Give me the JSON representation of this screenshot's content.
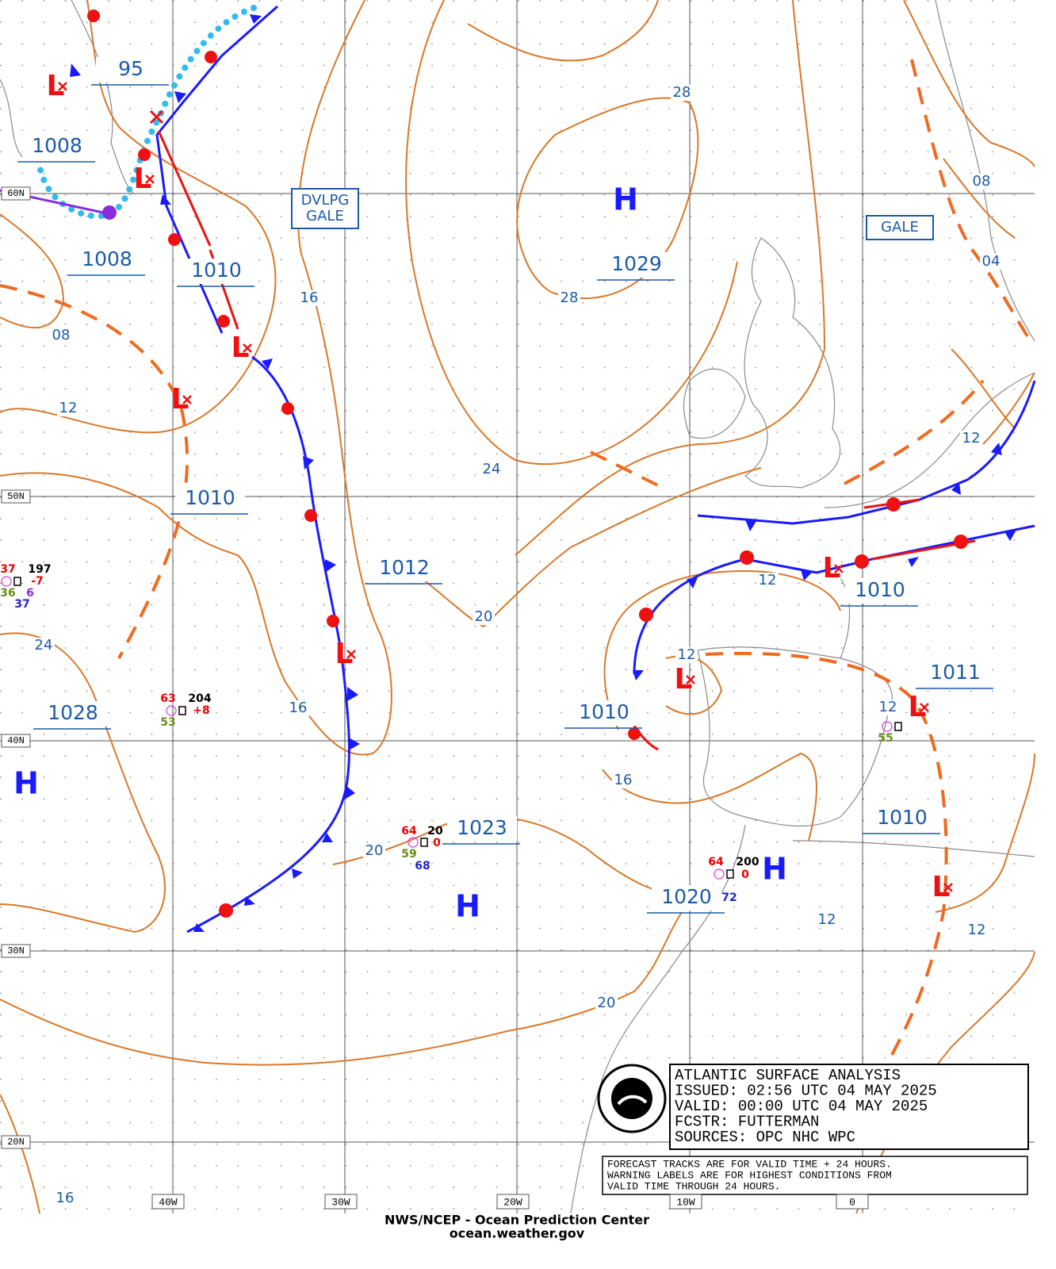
{
  "lat_labels": [
    "60N",
    "50N",
    "40N",
    "30N",
    "20N"
  ],
  "lon_labels": [
    "40W",
    "30W",
    "20W",
    "10W",
    "0"
  ],
  "pressure_labels": [
    "95",
    "1008",
    "1008",
    "1010",
    "1010",
    "1012",
    "1029",
    "1028",
    "1023",
    "1020",
    "1010",
    "1010",
    "1011",
    "1010"
  ],
  "isobar_labels": [
    "28",
    "28",
    "16",
    "08",
    "12",
    "24",
    "20",
    "24",
    "16",
    "20",
    "12",
    "12",
    "16",
    "12",
    "12",
    "12",
    "20",
    "08",
    "04",
    "12",
    "16"
  ],
  "highs": [
    "H",
    "H",
    "H",
    "H"
  ],
  "lows": [
    "L",
    "L",
    "L",
    "L",
    "L",
    "L",
    "L",
    "L",
    "L"
  ],
  "warnings": [
    [
      "DVLPG",
      "GALE"
    ],
    [
      "GALE"
    ]
  ],
  "stations": [
    [
      "37",
      "197",
      "-7",
      "36",
      "6",
      "37"
    ],
    [
      "63",
      "204",
      "+8",
      "53"
    ],
    [
      "64",
      "20",
      "0",
      "59",
      "68"
    ],
    [
      "64",
      "200",
      "0",
      "72"
    ],
    [
      "55"
    ]
  ],
  "info_box": [
    "ATLANTIC SURFACE ANALYSIS",
    "ISSUED:  02:56 UTC 04 MAY 2025",
    "VALID:   00:00 UTC 04 MAY 2025",
    "FCSTR:   FUTTERMAN",
    "SOURCES: OPC NHC WPC"
  ],
  "note": [
    "FORECAST TRACKS ARE FOR VALID TIME + 24 HOURS.",
    "WARNING LABELS ARE FOR HIGHEST CONDITIONS FROM",
    "VALID TIME THROUGH 24 HOURS."
  ],
  "footer": [
    "NWS/NCEP - Ocean Prediction Center",
    "ocean.weather.gov"
  ]
}
